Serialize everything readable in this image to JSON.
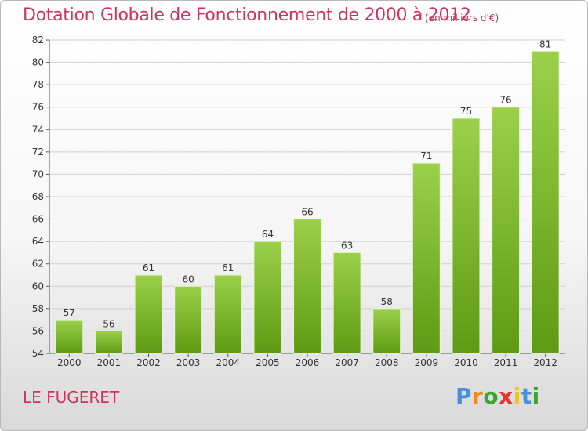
{
  "header": {
    "title": "Dotation Globale de Fonctionnement de 2000 à 2012",
    "unit": "(en milliers d'€)"
  },
  "footer": {
    "commune": "LE FUGERET",
    "logo": "Proxiti"
  },
  "colors": {
    "title": "#d0315e",
    "bar_light": "#9bd14a",
    "bar_dark": "#5e9a13",
    "grid": "#cfcfcf",
    "logo_letters": [
      "#4a90d9",
      "#f08a1c",
      "#3aa535",
      "#e8312f",
      "#f4c21b",
      "#4a90d9",
      "#3aa535"
    ]
  },
  "chart_data": {
    "type": "bar",
    "categories": [
      "2000",
      "2001",
      "2002",
      "2003",
      "2004",
      "2005",
      "2006",
      "2007",
      "2008",
      "2009",
      "2010",
      "2011",
      "2012"
    ],
    "values": [
      57,
      56,
      61,
      60,
      61,
      64,
      66,
      63,
      58,
      71,
      75,
      76,
      81
    ],
    "ylim": [
      54,
      82
    ],
    "yticks": [
      54,
      56,
      58,
      60,
      62,
      64,
      66,
      68,
      70,
      72,
      74,
      76,
      78,
      80,
      82
    ],
    "grid": true,
    "legend": "none"
  }
}
